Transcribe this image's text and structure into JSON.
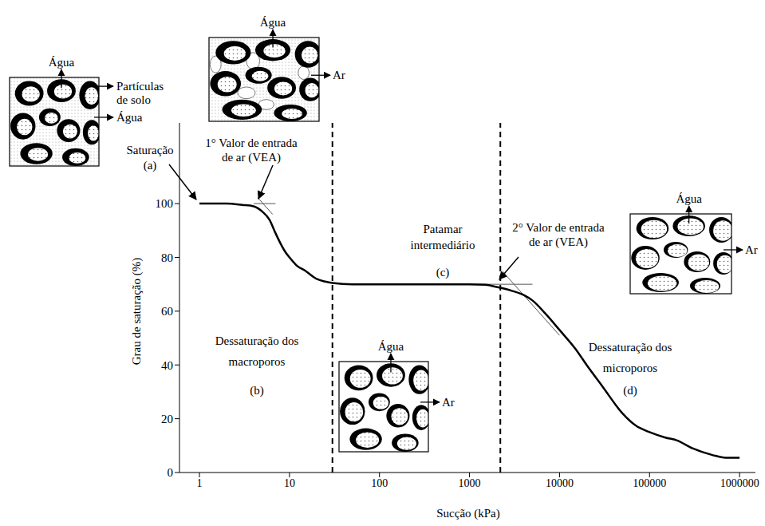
{
  "chart_data": {
    "type": "line",
    "x": [
      1,
      2,
      3,
      4,
      5,
      6,
      7,
      8,
      9,
      10,
      12,
      15,
      20,
      25,
      30,
      50,
      100,
      300,
      1000,
      1500,
      2000,
      3000,
      4000,
      5000,
      7000,
      10000,
      15000,
      20000,
      30000,
      50000,
      70000,
      100000,
      150000,
      200000,
      300000,
      500000,
      700000,
      1000000
    ],
    "values": [
      100,
      100,
      99.5,
      99,
      97,
      94,
      89,
      85,
      82,
      80,
      77,
      75,
      72,
      71,
      70.5,
      70,
      70,
      70,
      70,
      69.8,
      69,
      67.5,
      66,
      64,
      59,
      53,
      46,
      40,
      32,
      22,
      17.5,
      15,
      13,
      12,
      9,
      6.5,
      5.5,
      5.5
    ],
    "color": "#000000",
    "xlim": [
      0.6,
      1500000
    ],
    "ylim": [
      0,
      130
    ],
    "xticks": [
      1,
      10,
      100,
      1000,
      10000,
      100000,
      1000000
    ],
    "yticks": [
      0,
      20,
      40,
      60,
      80,
      100
    ],
    "log": "x",
    "grid": false,
    "xlabel": "Sucção (kPa)",
    "ylabel": "Grau de saturação (%)",
    "dividers": [
      30,
      2200
    ],
    "tangent_lines": [
      [
        [
          4,
          100
        ],
        [
          7,
          100
        ]
      ],
      [
        [
          4.5,
          102
        ],
        [
          6.5,
          96
        ]
      ],
      [
        [
          1000,
          70
        ],
        [
          5000,
          70
        ]
      ],
      [
        [
          2300,
          75
        ],
        [
          10000,
          51
        ]
      ]
    ],
    "annotations": [
      {
        "text": "Saturação",
        "label": "(a)"
      },
      {
        "text": "1° Valor de entrada de ar (VEA)"
      },
      {
        "text": "Patamar intermediário",
        "label": "(c)"
      },
      {
        "text": "2° Valor de entrada de ar (VEA)"
      },
      {
        "text": "Dessaturação dos macroporos",
        "label": "(b)"
      },
      {
        "text": "Dessaturação dos microporos",
        "label": "(d)"
      }
    ],
    "insets": [
      {
        "water": "Água",
        "particles": "Partículas de solo",
        "pore_water": "Água"
      },
      {
        "water": "Água",
        "air": "Ar"
      },
      {
        "water": "Água",
        "air": "Ar"
      },
      {
        "water": "Água",
        "air": "Ar"
      }
    ]
  }
}
